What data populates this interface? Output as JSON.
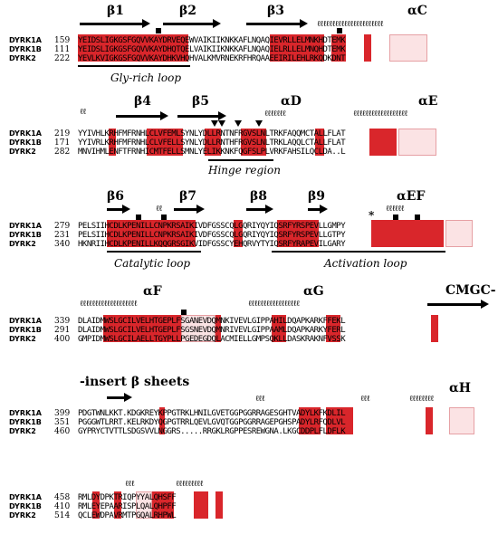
{
  "blocks": [
    {
      "ss": [
        "β1",
        "β2",
        "β3",
        "αC"
      ],
      "rows": [
        {
          "name": "DYRK1A",
          "num": "159",
          "seq": "YEIDSLIGKGSFGQVVKAYDRVEQEWVAIKIIKNKKAFLNQAQIEVRLLELMNKHDTEMK"
        },
        {
          "name": "DYRK1B",
          "num": "111",
          "seq": "YEIDSLIGKGSFGQVVKAYDHQTQELVAIKIIKNKKAFLNQAQIELRLLELMNQHDTEMK"
        },
        {
          "name": "DYRK2",
          "num": "222",
          "seq": "YEVLKVIGKGSFGQVVKAYDHKVHQHVALKMVRNEKRFHRQAAEEIRILEHLRKQDKDNT"
        }
      ],
      "label": "Gly-rich loop"
    },
    {
      "ss": [
        "β4",
        "β5",
        "αD",
        "αE"
      ],
      "rows": [
        {
          "name": "DYRK1A",
          "num": "219",
          "seq": "YYIVHLKRHFMFRNHLCLVFEMLSYNLYDLLRNTNFRGVSLNLTRKFAQQMCTALLFLAT"
        },
        {
          "name": "DYRK1B",
          "num": "171",
          "seq": "YYIVRLKRHFMFRNHLCLVFELLSYNLYDLLRNTHFRGVSLNLTRKLAQQLCTALLFLAT"
        },
        {
          "name": "DYRK2",
          "num": "282",
          "seq": "MNVIHMLENFTFRNHICMTFELLSMNLYELIKKNKFQGFSLPLVRKFAHSILQCLDA..L"
        }
      ],
      "label": "Hinge region"
    },
    {
      "ss": [
        "β6",
        "β7",
        "β8",
        "β9",
        "αEF"
      ],
      "rows": [
        {
          "name": "DYRK1A",
          "num": "279",
          "seq": "PELSIIHCDLKPENILLCNPKRSAIKIVDFGSSCQLGQRIYQYIQSRFYRSPEVLLGMPY"
        },
        {
          "name": "DYRK1B",
          "num": "231",
          "seq": "PELSIIHCDLKPENILLCNPKRSAIKIVDFGSSCQLGQRIYQYIQSRFYRSPEVLLGTPY"
        },
        {
          "name": "DYRK2",
          "num": "340",
          "seq": "HKNRIIHCDLKPENILLKQQGRSGIKVIDFGSSCYEHQRVYTYIQSRFYRAPEVILGARY"
        }
      ],
      "labels": [
        "Catalytic loop",
        "Activation loop"
      ],
      "star": "*"
    },
    {
      "ss": [
        "αF",
        "αG",
        "CMGC-"
      ],
      "rows": [
        {
          "name": "DYRK1A",
          "num": "339",
          "seq": "DLAIDMWSLGCILVELHTGEPLFSGANEVDQMNKIVEVLGIPPAHILDQAPKARKFFEKL"
        },
        {
          "name": "DYRK1B",
          "num": "291",
          "seq": "DLAIDMWSLGCILVELHTGEPLFSGSNEVDQMNRIVEVLGIPPAAMLDQAPKARKYFERL"
        },
        {
          "name": "DYRK2",
          "num": "400",
          "seq": "GMPIDMWSLGCILAELLTGYPLLPGEDEGDQLACMIELLGMPSQKLLDASKRAKNFVSSK"
        }
      ]
    },
    {
      "ss": [
        "-insert β sheets",
        "αH"
      ],
      "rows": [
        {
          "name": "DYRK1A",
          "num": "399",
          "seq": "PDGTWNLKKT.KDGKREYKPPGTRKLHNILGVETGGPGGRRAGESGHTVADYLKFKDLIL"
        },
        {
          "name": "DYRK1B",
          "num": "351",
          "seq": "PGGGWTLRRT.KELRKDYQGPGTRRLQEVLGVQTGGPGGRRAGEPGHSPADYLRFQDLVL"
        },
        {
          "name": "DYRK2",
          "num": "460",
          "seq": "GYPRYCTVTTLSDGSVVLNGGRS.....RRGKLRGPPESREWGNA.LKGCDDPLFLDFLK"
        }
      ]
    },
    {
      "ss": [],
      "rows": [
        {
          "name": "DYRK1A",
          "num": "458",
          "seq": "RMLDYDPKTRIQPYYALQHSFF"
        },
        {
          "name": "DYRK1B",
          "num": "410",
          "seq": "RMLEYEPAARISPLQALQHPFF"
        },
        {
          "name": "DYRK2",
          "num": "514",
          "seq": "QCLEWDPAVRMTPGQALRHPWL"
        }
      ]
    }
  ]
}
